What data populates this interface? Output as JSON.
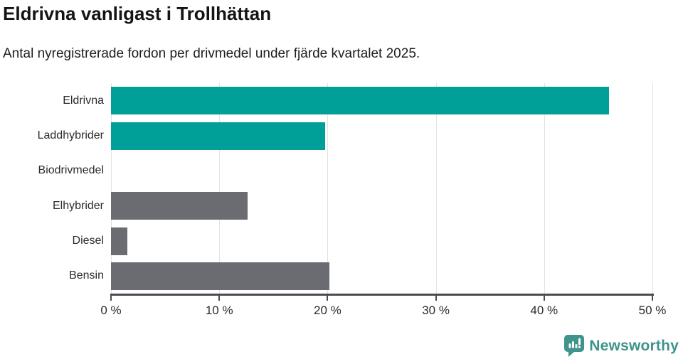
{
  "header": {
    "title": "Eldrivna vanligast i Trollhättan",
    "subtitle": "Antal nyregistrerade fordon per drivmedel under fjärde kvartalet 2025."
  },
  "chart_data": {
    "type": "bar",
    "orientation": "horizontal",
    "title": "Eldrivna vanligast i Trollhättan",
    "subtitle": "Antal nyregistrerade fordon per drivmedel under fjärde kvartalet 2025.",
    "categories": [
      "Eldrivna",
      "Laddhybrider",
      "Biodrivmedel",
      "Elhybrider",
      "Diesel",
      "Bensin"
    ],
    "values": [
      46,
      19.8,
      0,
      12.6,
      1.5,
      20.2
    ],
    "unit": "%",
    "xlim": [
      0,
      50
    ],
    "x_ticks": [
      0,
      10,
      20,
      30,
      40,
      50
    ],
    "x_tick_labels": [
      "0 %",
      "10 %",
      "20 %",
      "30 %",
      "40 %",
      "50 %"
    ],
    "bar_colors": [
      "#00a099",
      "#00a099",
      "#6b6b72",
      "#6b6b72",
      "#6b6b72",
      "#6b6b72"
    ],
    "grid": true,
    "legend": false,
    "xlabel": "",
    "ylabel": ""
  },
  "colors": {
    "teal": "#00a099",
    "gray": "#6b6b72",
    "axis": "#4b4b52",
    "gridline": "#e2e2e2",
    "brand": "#3f948b",
    "background": "#ffffff"
  },
  "footer": {
    "brand_name": "Newsworthy"
  }
}
